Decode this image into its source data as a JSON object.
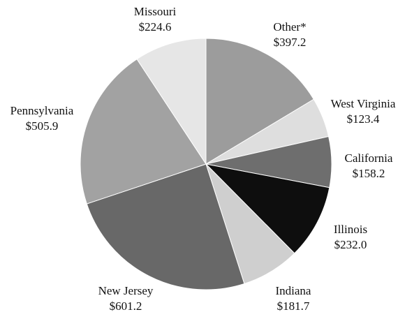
{
  "chart_data": {
    "type": "pie",
    "categories": [
      "Other*",
      "West Virginia",
      "California",
      "Illinois",
      "Indiana",
      "New Jersey",
      "Pennsylvania",
      "Missouri"
    ],
    "values": [
      397.2,
      123.4,
      158.2,
      232.0,
      181.7,
      601.2,
      505.9,
      224.6
    ],
    "value_labels": [
      "$397.2",
      "$123.4",
      "$158.2",
      "$232.0",
      "$181.7",
      "$601.2",
      "$505.9",
      "$224.6"
    ],
    "colors": [
      "#9c9c9c",
      "#dedede",
      "#6e6e6e",
      "#0e0e0e",
      "#cfcfcf",
      "#686868",
      "#a2a2a2",
      "#e6e6e6"
    ]
  }
}
